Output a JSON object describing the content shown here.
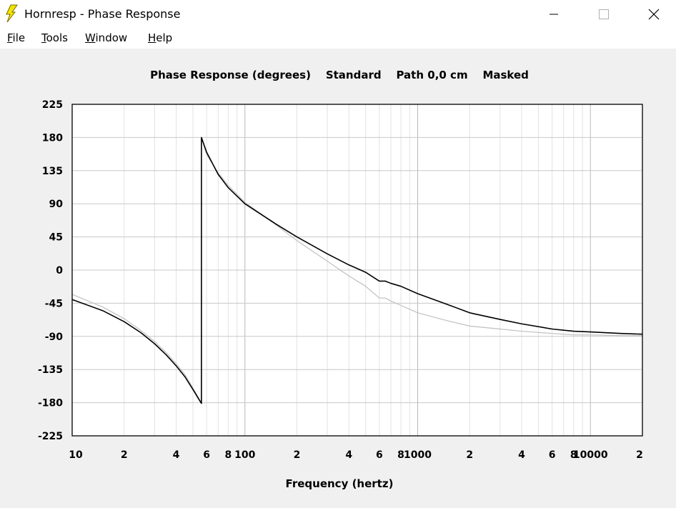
{
  "window": {
    "title": "Hornresp - Phase Response"
  },
  "menu": {
    "items": [
      {
        "label": "File",
        "accel": "F",
        "rest": "ile"
      },
      {
        "label": "Tools",
        "accel": "T",
        "rest": "ools"
      },
      {
        "label": "Window",
        "accel": "W",
        "rest": "indow"
      },
      {
        "label": "Help",
        "accel": "H",
        "rest": "elp"
      }
    ]
  },
  "chart_data": {
    "type": "line",
    "title": "Phase Response (degrees)    Standard    Path 0,0 cm    Masked",
    "xlabel": "Frequency (hertz)",
    "ylabel": "",
    "xscale": "log",
    "xlim": [
      10,
      20000
    ],
    "ylim": [
      -225,
      225
    ],
    "grid": true,
    "yticks": [
      225,
      180,
      135,
      90,
      45,
      0,
      -45,
      -90,
      -135,
      -180,
      -225
    ],
    "xtick_labels": [
      {
        "x": 10,
        "label": "10"
      },
      {
        "x": 20,
        "label": "2"
      },
      {
        "x": 40,
        "label": "4"
      },
      {
        "x": 60,
        "label": "6"
      },
      {
        "x": 80,
        "label": "8"
      },
      {
        "x": 100,
        "label": "100"
      },
      {
        "x": 200,
        "label": "2"
      },
      {
        "x": 400,
        "label": "4"
      },
      {
        "x": 600,
        "label": "6"
      },
      {
        "x": 800,
        "label": "8"
      },
      {
        "x": 1000,
        "label": "1000"
      },
      {
        "x": 2000,
        "label": "2"
      },
      {
        "x": 4000,
        "label": "4"
      },
      {
        "x": 6000,
        "label": "6"
      },
      {
        "x": 8000,
        "label": "8"
      },
      {
        "x": 10000,
        "label": "10000"
      },
      {
        "x": 20000,
        "label": "2"
      }
    ],
    "series": [
      {
        "color": "#000000",
        "x": [
          10,
          15,
          20,
          25,
          30,
          35,
          40,
          45,
          50,
          55,
          56,
          56.01,
          60,
          70,
          80,
          100,
          150,
          200,
          300,
          400,
          500,
          600,
          650,
          700,
          800,
          1000,
          1500,
          2000,
          3000,
          4000,
          6000,
          8000,
          10000,
          15000,
          20000
        ],
        "y": [
          -40,
          -55,
          -70,
          -85,
          -100,
          -115,
          -130,
          -145,
          -162,
          -178,
          -181,
          180,
          160,
          130,
          112,
          90,
          63,
          45,
          22,
          7,
          -3,
          -15,
          -15,
          -18,
          -22,
          -32,
          -47,
          -58,
          -67,
          -73,
          -80,
          -83,
          -84,
          -86,
          -87
        ]
      },
      {
        "color": "#c0c0c0",
        "x": [
          10,
          15,
          20,
          25,
          30,
          35,
          40,
          45,
          50,
          55,
          56,
          56.01,
          60,
          70,
          80,
          100,
          150,
          200,
          300,
          400,
          500,
          600,
          650,
          700,
          800,
          1000,
          1500,
          2000,
          3000,
          4000,
          6000,
          8000,
          10000,
          15000,
          20000
        ],
        "y": [
          -33,
          -50,
          -66,
          -82,
          -97,
          -112,
          -127,
          -142,
          -160,
          -177,
          -180,
          180,
          157,
          132,
          115,
          92,
          62,
          40,
          12,
          -8,
          -22,
          -38,
          -38,
          -42,
          -48,
          -58,
          -69,
          -76,
          -80,
          -83,
          -86,
          -88,
          -88,
          -89,
          -89
        ]
      }
    ]
  }
}
